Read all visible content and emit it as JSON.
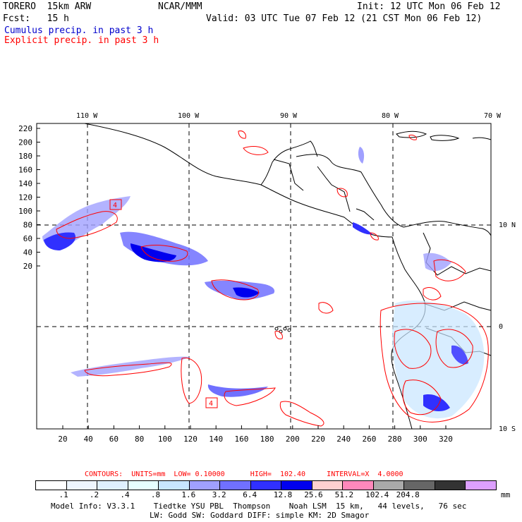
{
  "header": {
    "model": "TORERO  15km ARW",
    "org": "NCAR/MMM",
    "init": "Init: 12 UTC Mon 06 Feb 12",
    "fcst": "Fcst:   15 h",
    "valid": "Valid: 03 UTC Tue 07 Feb 12 (21 CST Mon 06 Feb 12)",
    "field1": "Cumulus precip. in past 3 h",
    "field2": "Explicit precip. in past 3 h"
  },
  "colors": {
    "cumulus": "#0000dd",
    "explicit": "#ff0000"
  },
  "map": {
    "lon_labels_top": [
      "110 W",
      "100 W",
      "90 W",
      "80 W",
      "70 W"
    ],
    "lat_labels_right": [
      "10 N",
      "0",
      "10 S"
    ],
    "y_ticks": [
      "220",
      "200",
      "180",
      "160",
      "140",
      "120",
      "100",
      "80",
      "60",
      "40",
      "20"
    ],
    "x_ticks": [
      "20",
      "40",
      "60",
      "80",
      "100",
      "120",
      "140",
      "160",
      "180",
      "200",
      "220",
      "240",
      "260",
      "280",
      "300",
      "320"
    ],
    "box_labels": [
      "4",
      "4"
    ]
  },
  "contours": {
    "text": "CONTOURS:  UNITS=mm  LOW= 0.10000      HIGH=  102.40     INTERVAL=X  4.0000"
  },
  "legend": {
    "colors": [
      "#ffffff",
      "#eef6ff",
      "#dff0ff",
      "#e6ffff",
      "#c8e6ff",
      "#a0a0ff",
      "#7070ff",
      "#3030ff",
      "#0000ee",
      "#ffd0d0",
      "#ff88bb",
      "#aaaaaa",
      "#666666",
      "#333333",
      "#dda0ff"
    ],
    "labels": [
      ".1",
      ".2",
      ".4",
      ".8",
      "1.6",
      "3.2",
      "6.4",
      "12.8",
      "25.6",
      "51.2",
      "102.4",
      "204.8"
    ],
    "units": "mm"
  },
  "footer": {
    "line1": "Model Info: V3.3.1    Tiedtke YSU PBL  Thompson    Noah LSM  15 km,   44 levels,   76 sec",
    "line2": "LW: Godd SW: Goddard DIFF: simple KM: 2D Smagor"
  }
}
